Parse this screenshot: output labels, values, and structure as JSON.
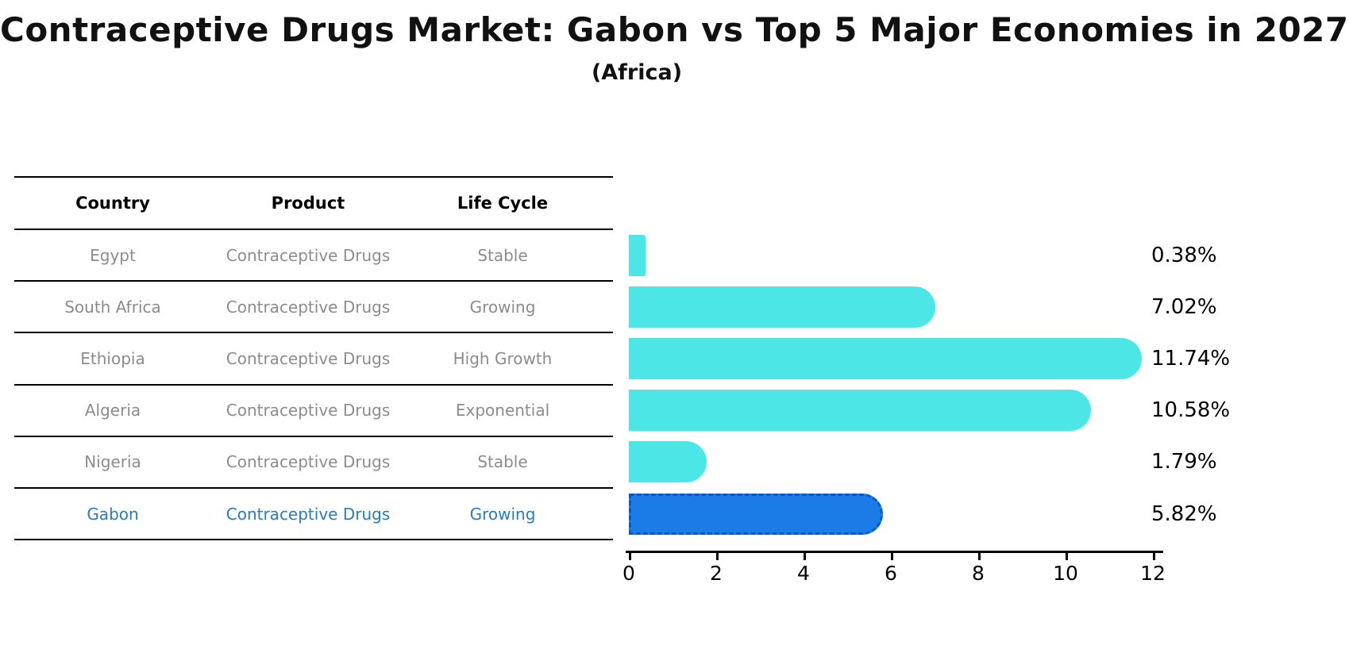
{
  "title": "Contraceptive Drugs Market: Gabon vs Top 5 Major Economies in 2027",
  "subtitle": "(Africa)",
  "table": {
    "columns": [
      "Country",
      "Product",
      "Life Cycle"
    ],
    "rows": [
      {
        "country": "Egypt",
        "product": "Contraceptive Drugs",
        "life_cycle": "Stable",
        "highlighted": false
      },
      {
        "country": "South Africa",
        "product": "Contraceptive Drugs",
        "life_cycle": "Growing",
        "highlighted": false
      },
      {
        "country": "Ethiopia",
        "product": "Contraceptive Drugs",
        "life_cycle": "High Growth",
        "highlighted": false
      },
      {
        "country": "Algeria",
        "product": "Contraceptive Drugs",
        "life_cycle": "Exponential",
        "highlighted": false
      },
      {
        "country": "Nigeria",
        "product": "Contraceptive Drugs",
        "life_cycle": "Stable",
        "highlighted": false
      },
      {
        "country": "Gabon",
        "product": "Contraceptive Drugs",
        "life_cycle": "Growing",
        "highlighted": true
      }
    ]
  },
  "chart_data": {
    "type": "bar",
    "orientation": "horizontal",
    "title": "Contraceptive Drugs Market: Gabon vs Top 5 Major Economies in 2027 (Africa)",
    "categories": [
      "Egypt",
      "South Africa",
      "Ethiopia",
      "Algeria",
      "Nigeria",
      "Gabon"
    ],
    "values": [
      0.38,
      7.02,
      11.74,
      10.58,
      1.79,
      5.82
    ],
    "value_labels": [
      "0.38%",
      "7.02%",
      "11.74%",
      "10.58%",
      "1.79%",
      "5.82%"
    ],
    "xlabel": "",
    "ylabel": "",
    "xlim": [
      0,
      12.3
    ],
    "x_ticks": [
      0,
      2,
      4,
      6,
      8,
      10,
      12
    ],
    "grid": false,
    "legend": false,
    "highlight_category": "Gabon",
    "colors": {
      "bar_default": "#4DE6E6",
      "bar_highlight": "#1B7CE8",
      "bar_highlight_border": "#0A58CA",
      "highlight_text": "#2B7BBA",
      "row_text": "#8c8c8c",
      "axis_text": "#000000"
    }
  }
}
